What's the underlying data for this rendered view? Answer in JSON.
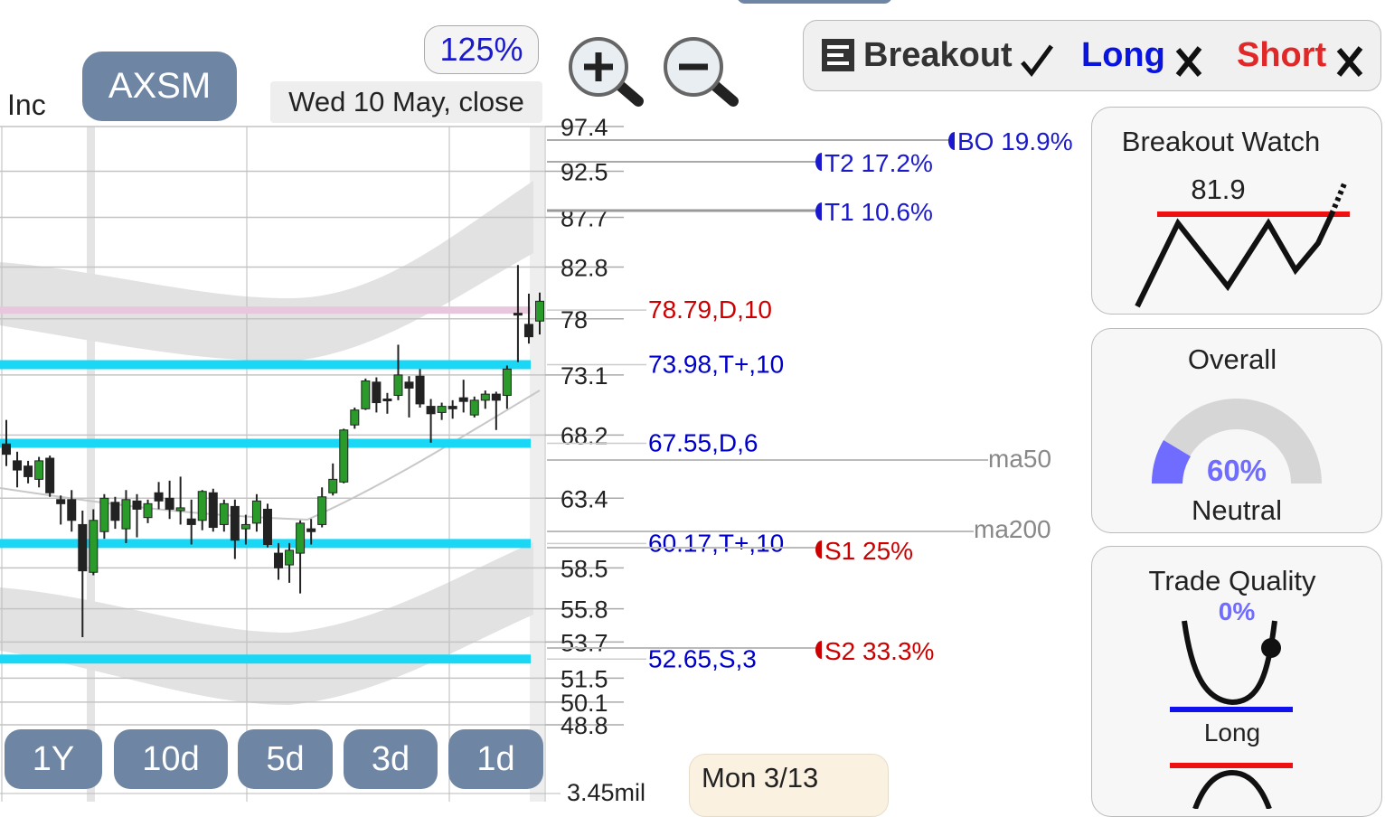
{
  "header": {
    "company": "Inc",
    "ticker": "AXSM",
    "zoom": "125%",
    "date": "Wed 10 May, close"
  },
  "signals": {
    "breakout": "Breakout",
    "long": "Long",
    "short": "Short"
  },
  "chart": {
    "ylim": [
      48.8,
      97.4
    ],
    "log_scale": true,
    "yticks": [
      97.4,
      92.5,
      87.7,
      82.8,
      78,
      73.1,
      68.2,
      63.4,
      58.5,
      55.8,
      53.7,
      51.5,
      50.1,
      48.8
    ],
    "candles": [
      {
        "o": 67.5,
        "h": 69.4,
        "l": 65.8,
        "c": 66.7
      },
      {
        "o": 66.2,
        "h": 66.9,
        "l": 64.2,
        "c": 65.5
      },
      {
        "o": 65.8,
        "h": 66.2,
        "l": 64.5,
        "c": 65.0
      },
      {
        "o": 64.8,
        "h": 66.5,
        "l": 64.2,
        "c": 66.2
      },
      {
        "o": 66.4,
        "h": 66.6,
        "l": 63.5,
        "c": 63.8
      },
      {
        "o": 63.3,
        "h": 63.6,
        "l": 61.5,
        "c": 63.0
      },
      {
        "o": 63.3,
        "h": 64.0,
        "l": 61.0,
        "c": 61.8
      },
      {
        "o": 61.5,
        "h": 62.5,
        "l": 54.0,
        "c": 58.3
      },
      {
        "o": 58.2,
        "h": 62.6,
        "l": 58.0,
        "c": 61.8
      },
      {
        "o": 61.0,
        "h": 63.7,
        "l": 60.5,
        "c": 63.4
      },
      {
        "o": 63.1,
        "h": 63.5,
        "l": 61.2,
        "c": 61.8
      },
      {
        "o": 61.2,
        "h": 64.0,
        "l": 60.2,
        "c": 63.3
      },
      {
        "o": 63.2,
        "h": 63.7,
        "l": 60.6,
        "c": 62.6
      },
      {
        "o": 62.0,
        "h": 63.3,
        "l": 61.6,
        "c": 63.0
      },
      {
        "o": 63.8,
        "h": 64.6,
        "l": 62.6,
        "c": 63.2
      },
      {
        "o": 63.4,
        "h": 64.7,
        "l": 61.9,
        "c": 62.6
      },
      {
        "o": 62.5,
        "h": 65.0,
        "l": 61.5,
        "c": 62.7
      },
      {
        "o": 61.9,
        "h": 63.3,
        "l": 60.1,
        "c": 61.5
      },
      {
        "o": 61.8,
        "h": 64.0,
        "l": 61.1,
        "c": 63.9
      },
      {
        "o": 63.8,
        "h": 64.1,
        "l": 61.0,
        "c": 61.3
      },
      {
        "o": 61.5,
        "h": 63.3,
        "l": 61.0,
        "c": 63.0
      },
      {
        "o": 62.8,
        "h": 63.3,
        "l": 59.1,
        "c": 60.4
      },
      {
        "o": 61.2,
        "h": 62.2,
        "l": 60.1,
        "c": 61.5
      },
      {
        "o": 61.6,
        "h": 63.7,
        "l": 61.0,
        "c": 63.2
      },
      {
        "o": 62.6,
        "h": 63.0,
        "l": 59.9,
        "c": 60.1
      },
      {
        "o": 59.5,
        "h": 60.2,
        "l": 57.7,
        "c": 58.5
      },
      {
        "o": 58.7,
        "h": 60.2,
        "l": 57.5,
        "c": 59.7
      },
      {
        "o": 59.5,
        "h": 61.8,
        "l": 56.8,
        "c": 61.6
      },
      {
        "o": 61.2,
        "h": 61.9,
        "l": 60.1,
        "c": 61.0
      },
      {
        "o": 61.5,
        "h": 64.2,
        "l": 61.3,
        "c": 63.5
      },
      {
        "o": 63.8,
        "h": 66.0,
        "l": 63.6,
        "c": 64.8
      },
      {
        "o": 64.6,
        "h": 68.7,
        "l": 64.5,
        "c": 68.6
      },
      {
        "o": 69.0,
        "h": 70.4,
        "l": 68.7,
        "c": 70.2
      },
      {
        "o": 70.3,
        "h": 72.8,
        "l": 70.2,
        "c": 72.6
      },
      {
        "o": 72.5,
        "h": 72.9,
        "l": 70.0,
        "c": 70.8
      },
      {
        "o": 71.1,
        "h": 71.6,
        "l": 69.9,
        "c": 71.0
      },
      {
        "o": 71.4,
        "h": 75.7,
        "l": 71.0,
        "c": 73.1
      },
      {
        "o": 72.5,
        "h": 73.0,
        "l": 69.6,
        "c": 72.0
      },
      {
        "o": 73.0,
        "h": 73.6,
        "l": 70.4,
        "c": 70.7
      },
      {
        "o": 70.5,
        "h": 71.1,
        "l": 67.6,
        "c": 69.9
      },
      {
        "o": 70.0,
        "h": 70.8,
        "l": 69.4,
        "c": 70.5
      },
      {
        "o": 70.5,
        "h": 71.0,
        "l": 69.5,
        "c": 70.3
      },
      {
        "o": 71.2,
        "h": 72.7,
        "l": 70.0,
        "c": 70.9
      },
      {
        "o": 69.8,
        "h": 71.3,
        "l": 69.6,
        "c": 71.0
      },
      {
        "o": 71.0,
        "h": 71.8,
        "l": 70.3,
        "c": 71.5
      },
      {
        "o": 71.5,
        "h": 71.7,
        "l": 68.6,
        "c": 71.0
      },
      {
        "o": 71.4,
        "h": 73.9,
        "l": 70.3,
        "c": 73.6
      },
      {
        "o": 78.5,
        "h": 83.0,
        "l": 74.2,
        "c": 78.4
      },
      {
        "o": 77.5,
        "h": 80.3,
        "l": 75.8,
        "c": 76.4
      },
      {
        "o": 77.8,
        "h": 80.4,
        "l": 76.6,
        "c": 79.6
      }
    ],
    "levels": [
      {
        "label": "78.79,D,10",
        "color": "#cc0000",
        "line": "#e8c6dc"
      },
      {
        "label": "73.98,T+,10",
        "color": "#0000cc",
        "line": "#19d7f5"
      },
      {
        "label": "67.55,D,6",
        "color": "#0000cc",
        "line": "#19d7f5"
      },
      {
        "label": "60.17,T+,10",
        "color": "#0000cc",
        "line": "#19d7f5"
      },
      {
        "label": "52.65,S,3",
        "color": "#0000cc",
        "line": "#19d7f5"
      }
    ],
    "targets": [
      "BO 19.9%",
      "T2 17.2%",
      "T1 10.6%",
      "S1 25%",
      "S2 33.3%"
    ],
    "ma": [
      "ma50",
      "ma200"
    ],
    "volume": "3.45mil",
    "periods": [
      "1Y",
      "10d",
      "5d",
      "3d",
      "1d"
    ],
    "cursor_date": "Mon 3/13"
  },
  "panels": {
    "breakout_watch": {
      "title": "Breakout Watch",
      "value": "81.9"
    },
    "overall": {
      "title": "Overall",
      "value": "60%",
      "label": "Neutral"
    },
    "trade_quality": {
      "title": "Trade Quality",
      "value": "0%",
      "label": "Long"
    }
  }
}
